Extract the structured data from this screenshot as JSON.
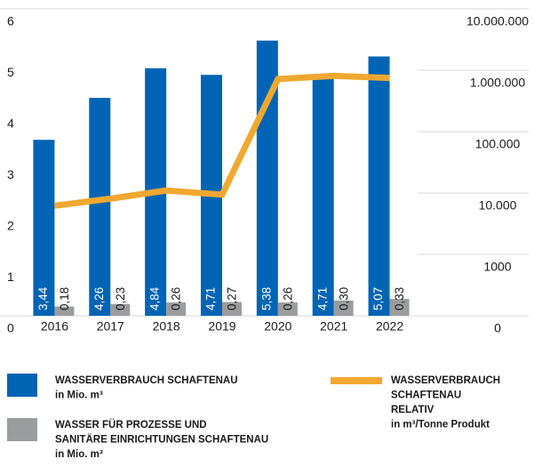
{
  "chart_data": {
    "type": "bar",
    "categories": [
      "2016",
      "2017",
      "2018",
      "2019",
      "2020",
      "2021",
      "2022"
    ],
    "series": [
      {
        "name": "WASSERVERBRAUCH SCHAFTENAU\nin Mio. m³",
        "type": "bar",
        "color": "#0064b4",
        "values": [
          3.44,
          4.26,
          4.84,
          4.71,
          5.38,
          4.71,
          5.07
        ],
        "value_labels": [
          "3,44",
          "4,26",
          "4,84",
          "4,71",
          "5,38",
          "4,71",
          "5,07"
        ]
      },
      {
        "name": "WASSER FÜR PROZESSE UND\nSANITÄRE EINRICHTUNGEN SCHAFTENAU\nin Mio. m³",
        "type": "bar",
        "color": "#9b9c9e",
        "values": [
          0.18,
          0.23,
          0.26,
          0.27,
          0.26,
          0.3,
          0.33
        ],
        "value_labels": [
          "0,18",
          "0,23",
          "0,26",
          "0,27",
          "0,26",
          "0,30",
          "0,33"
        ]
      },
      {
        "name": "WASSERVERBRAUCH\nSCHAFTENAU\nRELATIV\nin m³/Tonne Produkt",
        "type": "line",
        "axis": "y2",
        "color": "#f0a830",
        "values": [
          6200,
          8100,
          11000,
          9400,
          720000,
          810000,
          750000
        ]
      }
    ],
    "ylim": [
      0,
      6
    ],
    "yticks": [
      0,
      1,
      2,
      3,
      4,
      5,
      6
    ],
    "y2lim": [
      100,
      10000000
    ],
    "y2scale": "log",
    "y2ticks": [
      0,
      1000,
      {
        "value": 10000,
        "label": "10.000"
      },
      {
        "value": 100000,
        "label": "100.000"
      },
      {
        "value": 1000000,
        "label": "1.000.000"
      },
      {
        "value": 10000000,
        "label": "10.000.000"
      }
    ],
    "grid": true,
    "legend": "bottom"
  }
}
